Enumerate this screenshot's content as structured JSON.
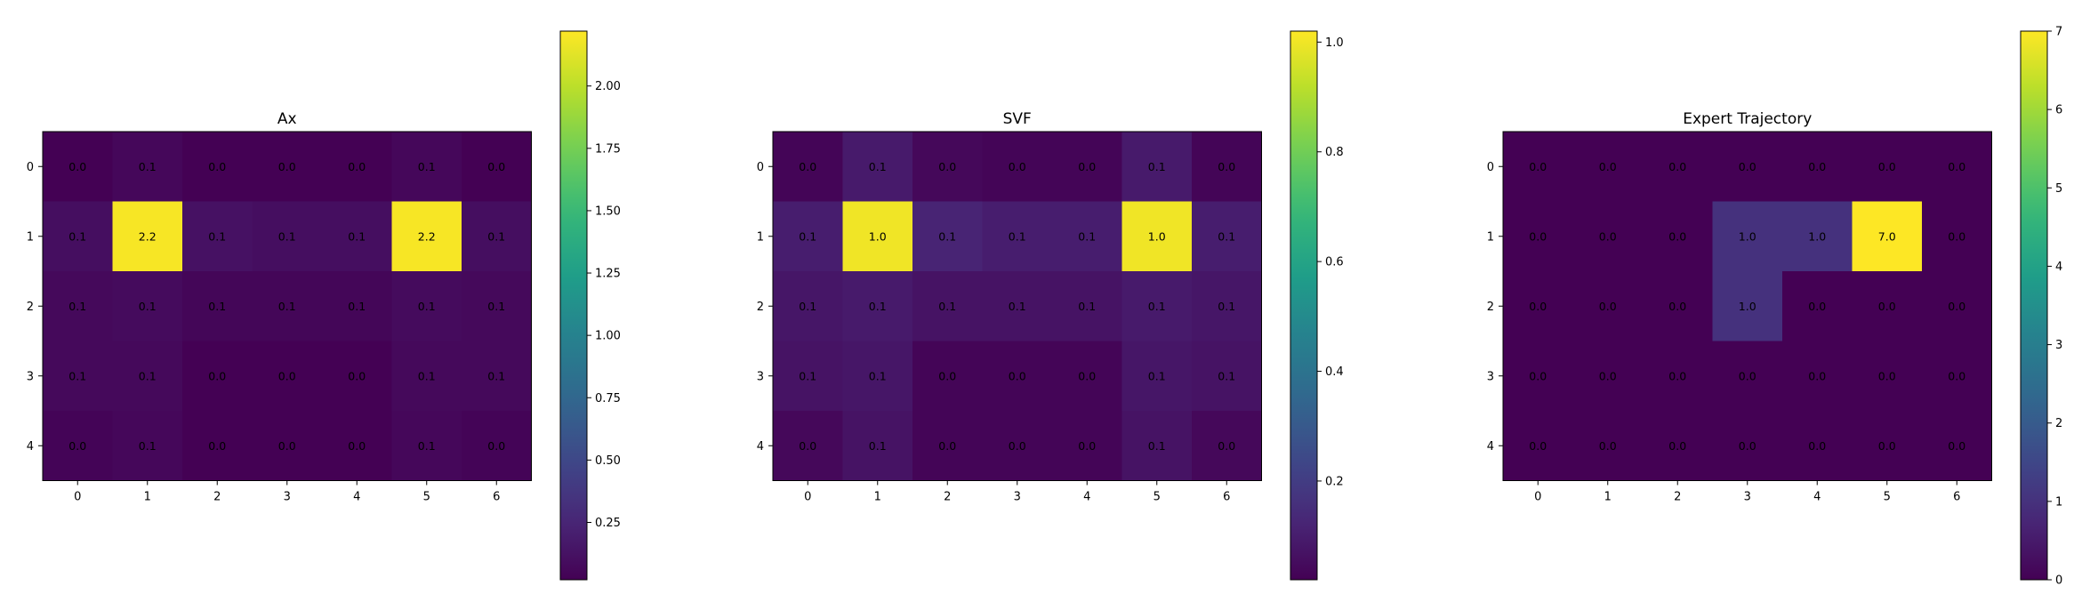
{
  "chart_data": [
    {
      "type": "heatmap",
      "title": "Ax",
      "x_ticks": [
        "0",
        "1",
        "2",
        "3",
        "4",
        "5",
        "6"
      ],
      "y_ticks": [
        "0",
        "1",
        "2",
        "3",
        "4"
      ],
      "values": [
        [
          0.02,
          0.06,
          0.02,
          0.02,
          0.02,
          0.06,
          0.02
        ],
        [
          0.1,
          2.2,
          0.12,
          0.1,
          0.1,
          2.2,
          0.1
        ],
        [
          0.07,
          0.08,
          0.05,
          0.05,
          0.05,
          0.08,
          0.07
        ],
        [
          0.07,
          0.07,
          0.02,
          0.02,
          0.02,
          0.07,
          0.07
        ],
        [
          0.04,
          0.06,
          0.02,
          0.02,
          0.02,
          0.06,
          0.04
        ]
      ],
      "cell_labels": [
        [
          "0.0",
          "0.1",
          "0.0",
          "0.0",
          "0.0",
          "0.1",
          "0.0"
        ],
        [
          "0.1",
          "2.2",
          "0.1",
          "0.1",
          "0.1",
          "2.2",
          "0.1"
        ],
        [
          "0.1",
          "0.1",
          "0.1",
          "0.1",
          "0.1",
          "0.1",
          "0.1"
        ],
        [
          "0.1",
          "0.1",
          "0.0",
          "0.0",
          "0.0",
          "0.1",
          "0.1"
        ],
        [
          "0.0",
          "0.1",
          "0.0",
          "0.0",
          "0.0",
          "0.1",
          "0.0"
        ]
      ],
      "colorbar": {
        "vmin": 0.02,
        "vmax": 2.22,
        "ticks": [
          0.25,
          0.5,
          0.75,
          1.0,
          1.25,
          1.5,
          1.75,
          2.0
        ],
        "tick_labels": [
          "0.25",
          "0.50",
          "0.75",
          "1.00",
          "1.25",
          "1.50",
          "1.75",
          "2.00"
        ]
      },
      "colormap": "viridis"
    },
    {
      "type": "heatmap",
      "title": "SVF",
      "x_ticks": [
        "0",
        "1",
        "2",
        "3",
        "4",
        "5",
        "6"
      ],
      "y_ticks": [
        "0",
        "1",
        "2",
        "3",
        "4"
      ],
      "values": [
        [
          0.03,
          0.09,
          0.04,
          0.03,
          0.03,
          0.09,
          0.03
        ],
        [
          0.1,
          1.0,
          0.12,
          0.1,
          0.1,
          1.0,
          0.1
        ],
        [
          0.08,
          0.09,
          0.07,
          0.07,
          0.07,
          0.09,
          0.08
        ],
        [
          0.07,
          0.08,
          0.03,
          0.03,
          0.03,
          0.08,
          0.07
        ],
        [
          0.04,
          0.07,
          0.03,
          0.03,
          0.03,
          0.07,
          0.04
        ]
      ],
      "cell_labels": [
        [
          "0.0",
          "0.1",
          "0.0",
          "0.0",
          "0.0",
          "0.1",
          "0.0"
        ],
        [
          "0.1",
          "1.0",
          "0.1",
          "0.1",
          "0.1",
          "1.0",
          "0.1"
        ],
        [
          "0.1",
          "0.1",
          "0.1",
          "0.1",
          "0.1",
          "0.1",
          "0.1"
        ],
        [
          "0.1",
          "0.1",
          "0.0",
          "0.0",
          "0.0",
          "0.1",
          "0.1"
        ],
        [
          "0.0",
          "0.1",
          "0.0",
          "0.0",
          "0.0",
          "0.1",
          "0.0"
        ]
      ],
      "colorbar": {
        "vmin": 0.02,
        "vmax": 1.02,
        "ticks": [
          0.2,
          0.4,
          0.6,
          0.8,
          1.0
        ],
        "tick_labels": [
          "0.2",
          "0.4",
          "0.6",
          "0.8",
          "1.0"
        ]
      },
      "colormap": "viridis"
    },
    {
      "type": "heatmap",
      "title": "Expert Trajectory",
      "x_ticks": [
        "0",
        "1",
        "2",
        "3",
        "4",
        "5",
        "6"
      ],
      "y_ticks": [
        "0",
        "1",
        "2",
        "3",
        "4"
      ],
      "values": [
        [
          0,
          0,
          0,
          0,
          0,
          0,
          0
        ],
        [
          0,
          0,
          0,
          1,
          1,
          7,
          0
        ],
        [
          0,
          0,
          0,
          1,
          0,
          0,
          0
        ],
        [
          0,
          0,
          0,
          0,
          0,
          0,
          0
        ],
        [
          0,
          0,
          0,
          0,
          0,
          0,
          0
        ]
      ],
      "cell_labels": [
        [
          "0.0",
          "0.0",
          "0.0",
          "0.0",
          "0.0",
          "0.0",
          "0.0"
        ],
        [
          "0.0",
          "0.0",
          "0.0",
          "1.0",
          "1.0",
          "7.0",
          "0.0"
        ],
        [
          "0.0",
          "0.0",
          "0.0",
          "1.0",
          "0.0",
          "0.0",
          "0.0"
        ],
        [
          "0.0",
          "0.0",
          "0.0",
          "0.0",
          "0.0",
          "0.0",
          "0.0"
        ],
        [
          "0.0",
          "0.0",
          "0.0",
          "0.0",
          "0.0",
          "0.0",
          "0.0"
        ]
      ],
      "colorbar": {
        "vmin": 0,
        "vmax": 7,
        "ticks": [
          0,
          1,
          2,
          3,
          4,
          5,
          6,
          7
        ],
        "tick_labels": [
          "0",
          "1",
          "2",
          "3",
          "4",
          "5",
          "6",
          "7"
        ]
      },
      "colormap": "viridis"
    }
  ]
}
